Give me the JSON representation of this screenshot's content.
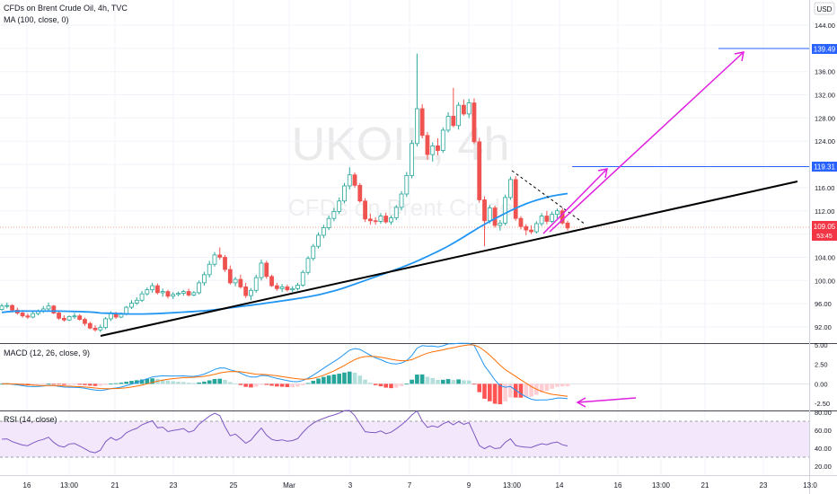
{
  "header": {
    "title": "CFDs on Brent Crude Oil, 4h, TVC",
    "indicator": "MA (100, close, 0)",
    "currency": "USD"
  },
  "watermark": {
    "line1": "UKOIL, 4h",
    "line2": "CFDs on Brent Crude"
  },
  "price_labels": {
    "last": "109.05",
    "countdown": "53:45",
    "level_high": "139.49",
    "level_mid": "119.31"
  },
  "chart_data": [
    {
      "type": "candlestick",
      "title": "CFDs on Brent Crude Oil, 4h, TVC",
      "y_ticks": [
        92,
        96,
        100,
        104,
        108,
        112,
        116,
        120,
        124,
        128,
        132,
        136,
        140,
        144
      ],
      "y_tick_labels": [
        "92.00",
        "96.00",
        "100.00",
        "104.00",
        "108.00",
        "112.00",
        "116.00",
        "120.00",
        "124.00",
        "128.00",
        "132.00",
        "136.00",
        "140.00",
        "144.00"
      ],
      "ylim": [
        88.3,
        145.5
      ],
      "x_tick_labels": [
        "16",
        "13:00",
        "21",
        "23",
        "25",
        "Mar",
        "3",
        "7",
        "9",
        "13:00",
        "14",
        "16",
        "13:00",
        "21",
        "23",
        "13:0"
      ],
      "candles": [
        [
          95.0,
          96.0,
          94.8,
          95.6
        ],
        [
          95.6,
          96.2,
          95.2,
          95.7
        ],
        [
          95.7,
          95.9,
          94.5,
          94.9
        ],
        [
          94.9,
          95.3,
          94.1,
          94.4
        ],
        [
          94.4,
          94.9,
          93.6,
          93.9
        ],
        [
          93.9,
          94.3,
          93.4,
          93.7
        ],
        [
          93.7,
          94.6,
          93.5,
          94.3
        ],
        [
          94.3,
          95.0,
          94.0,
          94.8
        ],
        [
          94.8,
          95.6,
          94.4,
          95.1
        ],
        [
          95.1,
          96.2,
          94.8,
          95.6
        ],
        [
          95.6,
          95.8,
          94.2,
          94.4
        ],
        [
          94.4,
          94.7,
          93.2,
          93.5
        ],
        [
          93.5,
          94.0,
          92.9,
          93.2
        ],
        [
          93.2,
          94.0,
          93.0,
          93.8
        ],
        [
          93.8,
          94.4,
          93.4,
          93.9
        ],
        [
          93.9,
          94.2,
          93.1,
          93.3
        ],
        [
          93.3,
          93.6,
          92.2,
          92.6
        ],
        [
          92.6,
          92.9,
          91.6,
          91.8
        ],
        [
          91.8,
          92.3,
          91.2,
          91.5
        ],
        [
          91.5,
          92.4,
          91.1,
          91.9
        ],
        [
          91.9,
          93.7,
          91.6,
          93.4
        ],
        [
          93.4,
          94.7,
          93.0,
          94.3
        ],
        [
          94.3,
          94.6,
          93.4,
          93.7
        ],
        [
          93.7,
          94.5,
          93.5,
          94.2
        ],
        [
          94.2,
          95.6,
          94.0,
          95.4
        ],
        [
          95.4,
          96.6,
          95.1,
          96.1
        ],
        [
          96.1,
          97.1,
          95.8,
          96.6
        ],
        [
          96.6,
          98.2,
          96.3,
          97.7
        ],
        [
          97.7,
          98.8,
          97.4,
          98.4
        ],
        [
          98.4,
          99.6,
          97.9,
          99.1
        ],
        [
          99.1,
          99.5,
          97.6,
          97.9
        ],
        [
          97.9,
          98.6,
          97.2,
          98.1
        ],
        [
          98.1,
          98.4,
          96.9,
          97.3
        ],
        [
          97.3,
          98.0,
          96.8,
          97.6
        ],
        [
          97.6,
          98.1,
          97.3,
          97.8
        ],
        [
          97.8,
          98.4,
          97.4,
          98.1
        ],
        [
          98.1,
          98.6,
          97.2,
          97.5
        ],
        [
          97.5,
          98.2,
          97.3,
          97.9
        ],
        [
          97.9,
          100.0,
          97.6,
          99.6
        ],
        [
          99.6,
          101.5,
          99.1,
          101.0
        ],
        [
          101.0,
          103.4,
          100.5,
          102.8
        ],
        [
          102.8,
          104.9,
          102.4,
          104.4
        ],
        [
          104.4,
          105.7,
          103.6,
          104.0
        ],
        [
          104.0,
          104.4,
          101.5,
          101.9
        ],
        [
          101.9,
          102.6,
          99.3,
          99.6
        ],
        [
          99.6,
          100.6,
          99.0,
          100.2
        ],
        [
          100.2,
          101.0,
          98.6,
          98.9
        ],
        [
          98.9,
          99.6,
          97.0,
          97.4
        ],
        [
          97.4,
          98.7,
          96.6,
          98.3
        ],
        [
          98.3,
          101.0,
          97.9,
          100.5
        ],
        [
          100.5,
          103.6,
          100.0,
          103.0
        ],
        [
          103.0,
          103.4,
          100.3,
          100.7
        ],
        [
          100.7,
          101.0,
          98.9,
          99.1
        ],
        [
          99.1,
          99.6,
          98.2,
          98.6
        ],
        [
          98.6,
          99.4,
          98.0,
          98.9
        ],
        [
          98.9,
          99.3,
          98.1,
          98.4
        ],
        [
          98.4,
          99.0,
          98.0,
          98.6
        ],
        [
          98.6,
          99.6,
          98.3,
          99.2
        ],
        [
          99.2,
          101.8,
          98.9,
          101.4
        ],
        [
          101.4,
          104.2,
          101.0,
          103.8
        ],
        [
          103.8,
          106.3,
          103.4,
          105.9
        ],
        [
          105.9,
          108.3,
          105.5,
          107.8
        ],
        [
          107.8,
          109.6,
          107.3,
          109.1
        ],
        [
          109.1,
          111.2,
          108.7,
          110.7
        ],
        [
          110.7,
          112.5,
          110.2,
          111.9
        ],
        [
          111.9,
          114.3,
          111.5,
          113.7
        ],
        [
          113.7,
          116.8,
          113.3,
          116.3
        ],
        [
          116.3,
          119.5,
          115.7,
          118.2
        ],
        [
          118.2,
          118.6,
          116.0,
          116.4
        ],
        [
          116.4,
          116.8,
          113.4,
          113.7
        ],
        [
          113.7,
          114.2,
          110.1,
          110.6
        ],
        [
          110.6,
          111.5,
          109.6,
          110.3
        ],
        [
          110.3,
          110.9,
          109.6,
          110.2
        ],
        [
          110.2,
          111.6,
          109.8,
          111.1
        ],
        [
          111.1,
          111.7,
          109.8,
          110.1
        ],
        [
          110.1,
          111.2,
          109.6,
          110.8
        ],
        [
          110.8,
          113.0,
          110.4,
          112.6
        ],
        [
          112.6,
          115.4,
          112.1,
          114.9
        ],
        [
          114.9,
          118.7,
          114.4,
          118.1
        ],
        [
          118.1,
          124.2,
          117.6,
          123.6
        ],
        [
          123.6,
          139.1,
          123.1,
          129.6
        ],
        [
          129.6,
          130.4,
          124.5,
          125.0
        ],
        [
          125.0,
          125.6,
          120.8,
          121.7
        ],
        [
          121.7,
          123.8,
          120.5,
          123.2
        ],
        [
          123.2,
          124.5,
          121.6,
          122.4
        ],
        [
          122.4,
          126.4,
          122.0,
          125.9
        ],
        [
          125.9,
          129.0,
          125.5,
          128.3
        ],
        [
          128.3,
          133.2,
          126.4,
          126.7
        ],
        [
          126.7,
          130.7,
          126.0,
          130.2
        ],
        [
          130.2,
          131.2,
          128.4,
          128.7
        ],
        [
          128.7,
          131.3,
          128.0,
          130.6
        ],
        [
          130.6,
          131.4,
          123.5,
          123.9
        ],
        [
          123.9,
          124.6,
          113.4,
          113.9
        ],
        [
          113.9,
          114.5,
          105.9,
          110.3
        ],
        [
          110.3,
          113.0,
          109.8,
          112.5
        ],
        [
          112.5,
          112.9,
          109.1,
          109.5
        ],
        [
          109.5,
          110.4,
          108.6,
          109.9
        ],
        [
          109.9,
          114.8,
          109.5,
          114.3
        ],
        [
          114.3,
          117.9,
          113.9,
          117.4
        ],
        [
          117.4,
          118.0,
          110.3,
          110.7
        ],
        [
          110.7,
          111.1,
          108.8,
          109.3
        ],
        [
          109.3,
          109.7,
          107.8,
          108.7
        ],
        [
          108.7,
          109.5,
          108.0,
          108.4
        ],
        [
          108.4,
          110.2,
          108.1,
          109.8
        ],
        [
          109.8,
          111.6,
          109.4,
          111.1
        ],
        [
          111.1,
          112.0,
          109.7,
          110.2
        ],
        [
          110.2,
          111.9,
          109.9,
          111.4
        ],
        [
          111.4,
          112.4,
          110.7,
          112.0
        ],
        [
          112.0,
          112.5,
          109.6,
          109.9
        ],
        [
          109.9,
          110.3,
          108.6,
          109.05
        ]
      ],
      "ma_label": "MA (100, close, 0)"
    },
    {
      "type": "line",
      "title": "MACD (12, 26, close, 9)",
      "y_ticks": [
        5.0,
        2.5,
        0.0,
        -2.5
      ],
      "y_tick_labels": [
        "5.00",
        "2.50",
        "0.00",
        "-2.50"
      ],
      "ylim": [
        -3.2,
        5.2
      ],
      "series": [
        {
          "name": "MACD"
        },
        {
          "name": "Signal"
        },
        {
          "name": "Histogram"
        }
      ]
    },
    {
      "type": "line",
      "title": "RSI (14, close)",
      "y_ticks": [
        80,
        60,
        40,
        20
      ],
      "y_tick_labels": [
        "80.00",
        "60.00",
        "40.00",
        "20.00"
      ],
      "ylim": [
        12,
        83
      ],
      "band": [
        30,
        70
      ],
      "series": [
        {
          "name": "RSI"
        }
      ]
    }
  ]
}
